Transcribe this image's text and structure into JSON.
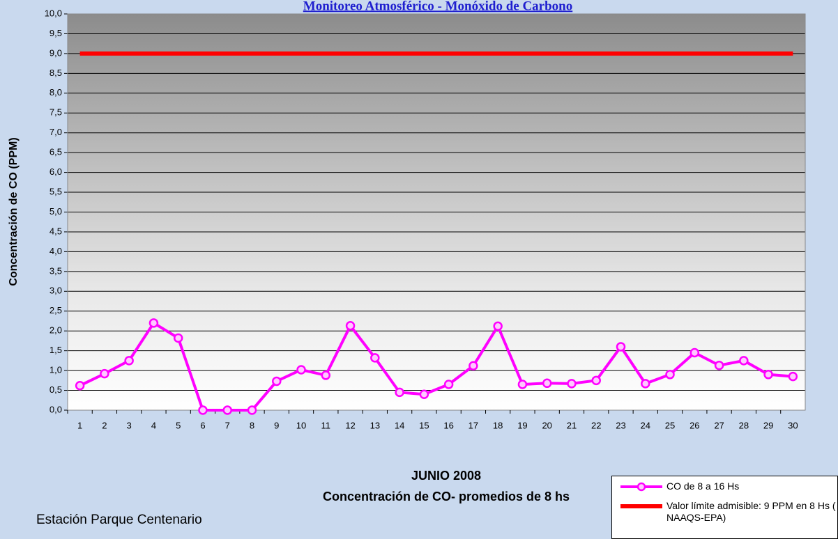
{
  "chart_data": {
    "type": "line",
    "title": "Monitoreo Atmosférico - Monóxido de Carbono",
    "y_label": "Concentración de CO (PPM)",
    "x_label": "JUNIO 2008",
    "x_sublabel": "Concentración de CO- promedios de 8 hs",
    "footer": "Estación Parque Centenario",
    "categories": [
      "1",
      "2",
      "3",
      "4",
      "5",
      "6",
      "7",
      "8",
      "9",
      "10",
      "11",
      "12",
      "13",
      "14",
      "15",
      "16",
      "17",
      "18",
      "19",
      "20",
      "21",
      "22",
      "23",
      "24",
      "25",
      "26",
      "27",
      "28",
      "29",
      "30"
    ],
    "series": [
      {
        "name": "CO de 8 a 16 Hs",
        "color": "#ff00ff",
        "marker": true,
        "values": [
          0.62,
          0.92,
          1.25,
          2.2,
          1.82,
          0,
          0,
          0,
          0.73,
          1.02,
          0.88,
          2.13,
          1.32,
          0.45,
          0.4,
          0.65,
          1.12,
          2.12,
          0.65,
          0.68,
          0.67,
          0.75,
          1.6,
          0.67,
          0.9,
          1.45,
          1.13,
          1.25,
          0.9,
          0.85
        ]
      },
      {
        "name": "Valor límite admisible: 9 PPM en 8 Hs ( NAAQS-EPA)",
        "color": "#ff0000",
        "marker": false,
        "values": [
          9,
          9,
          9,
          9,
          9,
          9,
          9,
          9,
          9,
          9,
          9,
          9,
          9,
          9,
          9,
          9,
          9,
          9,
          9,
          9,
          9,
          9,
          9,
          9,
          9,
          9,
          9,
          9,
          9,
          9
        ]
      }
    ],
    "ylim": [
      0,
      10
    ],
    "yticks": [
      {
        "value": 0,
        "label": "0,0"
      },
      {
        "value": 0.5,
        "label": "0,5"
      },
      {
        "value": 1,
        "label": "1,0"
      },
      {
        "value": 1.5,
        "label": "1,5"
      },
      {
        "value": 2,
        "label": "2,0"
      },
      {
        "value": 2.5,
        "label": "2,5"
      },
      {
        "value": 3,
        "label": "3,0"
      },
      {
        "value": 3.5,
        "label": "3,5"
      },
      {
        "value": 4,
        "label": "4,0"
      },
      {
        "value": 4.5,
        "label": "4,5"
      },
      {
        "value": 5,
        "label": "5,0"
      },
      {
        "value": 5.5,
        "label": "5,5"
      },
      {
        "value": 6,
        "label": "6,0"
      },
      {
        "value": 6.5,
        "label": "6,5"
      },
      {
        "value": 7,
        "label": "7,0"
      },
      {
        "value": 7.5,
        "label": "7,5"
      },
      {
        "value": 8,
        "label": "8,0"
      },
      {
        "value": 8.5,
        "label": "8,5"
      },
      {
        "value": 9,
        "label": "9,0"
      },
      {
        "value": 9.5,
        "label": "9,5"
      },
      {
        "value": 10,
        "label": "10,0"
      }
    ],
    "grid": true,
    "legend": "bottom-right"
  }
}
